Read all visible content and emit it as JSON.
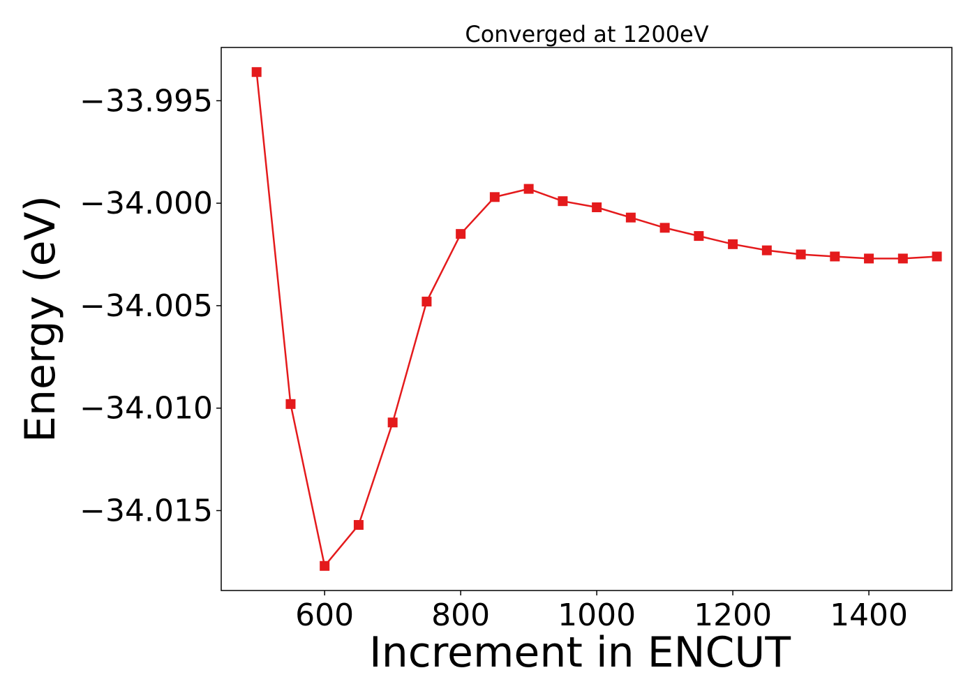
{
  "chart_data": {
    "type": "line",
    "title": "Converged at 1200eV",
    "xlabel": "Increment in ENCUT",
    "ylabel": "Energy (eV)",
    "xlim": [
      448,
      1522
    ],
    "ylim": [
      -34.0189,
      -33.9924
    ],
    "x_ticks": [
      600,
      800,
      1000,
      1200,
      1400
    ],
    "x_tick_labels": [
      "600",
      "800",
      "1000",
      "1200",
      "1400"
    ],
    "y_ticks": [
      -33.995,
      -34.0,
      -34.005,
      -34.01,
      -34.015
    ],
    "y_tick_labels": [
      "−33.995",
      "−34.000",
      "−34.005",
      "−34.010",
      "−34.015"
    ],
    "grid": false,
    "series": [
      {
        "color": "#e41a1c",
        "marker": "square",
        "x": [
          500,
          550,
          600,
          650,
          700,
          750,
          800,
          850,
          900,
          950,
          1000,
          1050,
          1100,
          1150,
          1200,
          1250,
          1300,
          1350,
          1400,
          1450,
          1500
        ],
        "y": [
          -33.9936,
          -34.0098,
          -34.0177,
          -34.0157,
          -34.0107,
          -34.0048,
          -34.0015,
          -33.9997,
          -33.9993,
          -33.9999,
          -34.0002,
          -34.0007,
          -34.0012,
          -34.0016,
          -34.002,
          -34.0023,
          -34.0025,
          -34.0026,
          -34.0027,
          -34.0027,
          -34.0026
        ]
      }
    ]
  }
}
